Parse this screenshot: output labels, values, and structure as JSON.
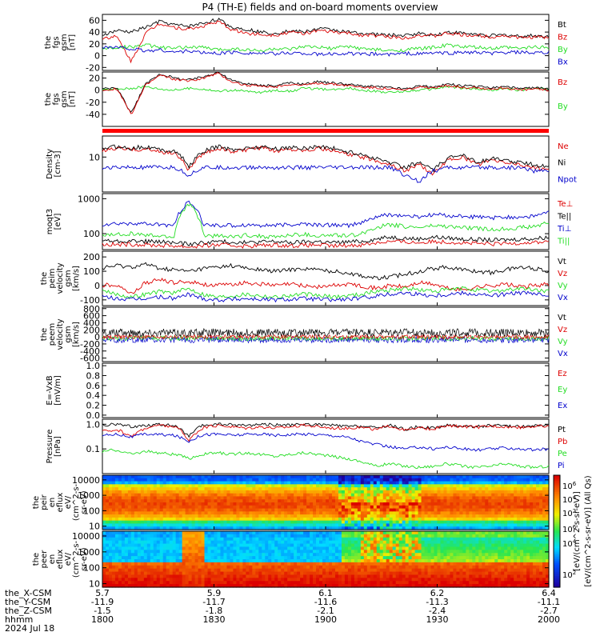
{
  "title": "P4 (TH-E) fields and on-board moments overview",
  "colors": {
    "black": "#000000",
    "red": "#dd0000",
    "green": "#22dd22",
    "blue": "#0000cc"
  },
  "x_axis": {
    "rows": [
      {
        "label": "the_X-CSM",
        "values": [
          "5.7",
          "5.9",
          "6.1",
          "6.2",
          "6.4"
        ]
      },
      {
        "label": "the_Y-CSM",
        "values": [
          "-11.9",
          "-11.7",
          "-11.6",
          "-11.3",
          "-11.1"
        ]
      },
      {
        "label": "the_Z-CSM",
        "values": [
          "-1.5",
          "-1.8",
          "-2.1",
          "-2.4",
          "-2.7"
        ]
      },
      {
        "label": "hhmm",
        "values": [
          "1800",
          "1830",
          "1900",
          "1930",
          "2000"
        ]
      }
    ],
    "date": "2024 Jul 18"
  },
  "panels": [
    {
      "id": "fgs_gsm_full",
      "ylabel": [
        "the",
        "fgs",
        "gsm",
        "[nT]"
      ],
      "ticks": [
        "60",
        "40",
        "20",
        "0",
        "-20"
      ],
      "legend": [
        "Bt",
        "Bz",
        "By",
        "Bx"
      ],
      "legend_colors": [
        "black",
        "red",
        "green",
        "blue"
      ]
    },
    {
      "id": "fgs_gsm_z",
      "ylabel": [
        "the",
        "fgs",
        "gsm",
        "[nT]"
      ],
      "ticks": [
        "20",
        "0",
        "-20",
        "-40"
      ],
      "legend": [
        "Bz",
        "By"
      ],
      "legend_colors": [
        "red",
        "green"
      ]
    },
    {
      "id": "state_bar",
      "ylabel": [],
      "ticks": [],
      "legend": [],
      "legend_colors": []
    },
    {
      "id": "density",
      "ylabel": [
        "Density",
        "[cm-3]"
      ],
      "ticks": [
        "10"
      ],
      "legend": [
        "Ne",
        "Ni",
        "Npot"
      ],
      "legend_colors": [
        "red",
        "black",
        "blue"
      ]
    },
    {
      "id": "temperature",
      "ylabel": [
        "moqt3",
        "[eV]"
      ],
      "ticks": [
        "1000",
        "100"
      ],
      "legend": [
        "Te⊥",
        "Te||",
        "Ti⊥",
        "Ti||"
      ],
      "legend_colors": [
        "red",
        "black",
        "blue",
        "green"
      ]
    },
    {
      "id": "peim_velocity",
      "ylabel": [
        "the",
        "peim",
        "velocity",
        "gsm",
        "[km/s]"
      ],
      "ticks": [
        "200",
        "100",
        "0",
        "-100"
      ],
      "legend": [
        "Vt",
        "Vz",
        "Vy",
        "Vx"
      ],
      "legend_colors": [
        "black",
        "red",
        "green",
        "blue"
      ]
    },
    {
      "id": "peem_velocity",
      "ylabel": [
        "the",
        "peem",
        "velocity",
        "gsm",
        "[km/s]"
      ],
      "ticks": [
        "800",
        "600",
        "400",
        "200",
        "0",
        "-200",
        "-400",
        "-600"
      ],
      "legend": [
        "Vt",
        "Vz",
        "Vy",
        "Vx"
      ],
      "legend_colors": [
        "black",
        "red",
        "green",
        "blue"
      ]
    },
    {
      "id": "exb",
      "ylabel": [
        "E=-VxB",
        "[mV/m]"
      ],
      "ticks": [
        "1.0",
        "0.8",
        "0.6",
        "0.4",
        "0.2",
        "0.0"
      ],
      "legend": [
        "Ez",
        "Ey",
        "Ex"
      ],
      "legend_colors": [
        "red",
        "green",
        "blue"
      ]
    },
    {
      "id": "pressure",
      "ylabel": [
        "Pressure",
        "[nPa]"
      ],
      "ticks": [
        "1.0",
        "0.1"
      ],
      "legend": [
        "Pt",
        "Pb",
        "Pe",
        "Pi"
      ],
      "legend_colors": [
        "black",
        "red",
        "green",
        "blue"
      ]
    },
    {
      "id": "peir",
      "ylabel": [
        "the",
        "peir",
        "en",
        "eflux",
        "eV/",
        "(cm^2-s-",
        "sr-eV)"
      ],
      "ticks": [
        "10000",
        "1000",
        "100",
        "10"
      ],
      "legend": [],
      "legend_colors": []
    },
    {
      "id": "peer",
      "ylabel": [
        "the",
        "peer",
        "en",
        "eflux",
        "eV/",
        "(cm^2-s-",
        "sr-eV)"
      ],
      "ticks": [
        "10000",
        "1000",
        "100",
        "10"
      ],
      "legend": [],
      "legend_colors": []
    }
  ],
  "colorbar": {
    "label": "[eV/(cm^2-s-sr-eV)] (All Qs)",
    "overlap_label": "[eV/(cm^2-s-sr-eV)]",
    "ticks_top": [
      "10^6",
      "10^4",
      "10^2"
    ],
    "ticks_bottom": [
      "10^6",
      "10^4",
      "10^2"
    ]
  },
  "chart_data": {
    "type": "line",
    "title": "P4 (TH-E) fields and on-board moments overview",
    "x": {
      "label": "hhmm",
      "ticks": [
        "1800",
        "1830",
        "1900",
        "1930",
        "2000"
      ],
      "range": [
        "1800",
        "2000"
      ]
    },
    "series": [
      {
        "name": "Bt",
        "panel": "fgs_gsm_full",
        "color": "black",
        "values": [
          35,
          42,
          40,
          48,
          58,
          52,
          50,
          55,
          62,
          48,
          45,
          40,
          38,
          42,
          40,
          46,
          44,
          40,
          38,
          36,
          35,
          34,
          38,
          35,
          40,
          38,
          36,
          34,
          35,
          33,
          34,
          32
        ]
      },
      {
        "name": "Bz",
        "panel": "fgs_gsm_full",
        "color": "red",
        "values": [
          30,
          32,
          -10,
          38,
          55,
          48,
          45,
          50,
          58,
          44,
          38,
          36,
          35,
          40,
          38,
          42,
          40,
          38,
          35,
          34,
          32,
          30,
          35,
          33,
          38,
          35,
          34,
          32,
          34,
          30,
          32,
          30
        ]
      },
      {
        "name": "By",
        "panel": "fgs_gsm_full",
        "color": "green",
        "values": [
          12,
          14,
          15,
          18,
          14,
          12,
          15,
          14,
          10,
          12,
          10,
          8,
          12,
          10,
          15,
          14,
          12,
          16,
          12,
          10,
          8,
          10,
          12,
          14,
          18,
          15,
          14,
          12,
          14,
          12,
          15,
          14
        ]
      },
      {
        "name": "Bx",
        "panel": "fgs_gsm_full",
        "color": "blue",
        "values": [
          15,
          14,
          12,
          8,
          10,
          6,
          8,
          5,
          4,
          6,
          5,
          4,
          3,
          5,
          4,
          2,
          3,
          4,
          2,
          3,
          2,
          4,
          3,
          5,
          4,
          6,
          5,
          4,
          5,
          6,
          4,
          5
        ]
      },
      {
        "name": "Ne",
        "panel": "density",
        "color": "red",
        "values": [
          15,
          18,
          16,
          17,
          14,
          13,
          4,
          12,
          18,
          14,
          16,
          18,
          15,
          17,
          16,
          18,
          15,
          12,
          10,
          8,
          6,
          4,
          6,
          3,
          8,
          10,
          6,
          8,
          7,
          6,
          5,
          4
        ]
      },
      {
        "name": "Ni",
        "panel": "density",
        "color": "black",
        "values": [
          18,
          20,
          18,
          20,
          16,
          15,
          5,
          14,
          20,
          16,
          18,
          20,
          17,
          19,
          18,
          20,
          18,
          14,
          12,
          9,
          7,
          5,
          7,
          4,
          9,
          12,
          7,
          9,
          8,
          7,
          6,
          5
        ]
      },
      {
        "name": "Npot",
        "panel": "density",
        "color": "blue",
        "values": [
          5,
          5,
          5,
          5,
          5,
          5,
          3,
          5,
          5,
          5,
          5,
          5,
          5,
          5,
          5,
          5,
          5,
          5,
          5,
          5,
          5,
          3,
          2,
          4,
          5,
          5,
          5,
          5,
          5,
          5,
          4,
          4
        ]
      },
      {
        "name": "Ti⊥",
        "panel": "temperature",
        "color": "blue",
        "values": [
          180,
          190,
          200,
          185,
          180,
          170,
          800,
          180,
          175,
          170,
          180,
          175,
          170,
          180,
          190,
          175,
          180,
          170,
          200,
          300,
          350,
          320,
          300,
          350,
          330,
          310,
          300,
          280,
          290,
          300,
          320,
          400
        ]
      },
      {
        "name": "Ti||",
        "panel": "temperature",
        "color": "green",
        "values": [
          90,
          95,
          100,
          90,
          85,
          80,
          700,
          90,
          85,
          80,
          90,
          85,
          80,
          90,
          95,
          85,
          90,
          85,
          100,
          150,
          180,
          160,
          150,
          170,
          160,
          150,
          140,
          130,
          140,
          150,
          160,
          200
        ]
      },
      {
        "name": "Te||",
        "panel": "temperature",
        "color": "black",
        "values": [
          65,
          60,
          62,
          60,
          58,
          55,
          50,
          55,
          60,
          58,
          55,
          58,
          60,
          55,
          58,
          60,
          55,
          58,
          60,
          70,
          80,
          75,
          70,
          80,
          75,
          70,
          68,
          65,
          66,
          70,
          72,
          80
        ]
      },
      {
        "name": "Te⊥",
        "panel": "temperature",
        "color": "red",
        "values": [
          50,
          48,
          50,
          48,
          46,
          45,
          42,
          45,
          48,
          46,
          44,
          46,
          48,
          45,
          46,
          48,
          44,
          46,
          48,
          55,
          60,
          58,
          55,
          60,
          58,
          55,
          52,
          50,
          52,
          55,
          56,
          60
        ]
      },
      {
        "name": "Vt (peim)",
        "panel": "peim_velocity",
        "color": "black",
        "values": [
          120,
          140,
          130,
          150,
          120,
          110,
          100,
          120,
          130,
          140,
          120,
          110,
          100,
          110,
          120,
          110,
          100,
          90,
          70,
          50,
          60,
          80,
          100,
          120,
          130,
          110,
          100,
          90,
          110,
          130,
          120,
          100
        ]
      },
      {
        "name": "Vz (peim)",
        "panel": "peim_velocity",
        "color": "red",
        "values": [
          0,
          10,
          -60,
          20,
          40,
          20,
          30,
          10,
          0,
          10,
          20,
          10,
          0,
          10,
          0,
          -10,
          0,
          10,
          0,
          -20,
          0,
          -10,
          20,
          10,
          -20,
          -30,
          -10,
          0,
          10,
          -10,
          0,
          10
        ]
      },
      {
        "name": "Vy (peim)",
        "panel": "peim_velocity",
        "color": "green",
        "values": [
          -40,
          -60,
          -80,
          -60,
          -40,
          -50,
          -20,
          -60,
          -80,
          -70,
          -60,
          -70,
          -80,
          -70,
          -60,
          -70,
          -80,
          -70,
          -60,
          -40,
          -30,
          -20,
          -30,
          -40,
          -30,
          -20,
          -30,
          -40,
          -30,
          -20,
          -30,
          -40
        ]
      },
      {
        "name": "Vx (peim)",
        "panel": "peim_velocity",
        "color": "blue",
        "values": [
          -80,
          -90,
          -100,
          -90,
          -80,
          -90,
          -60,
          -90,
          -100,
          -95,
          -90,
          -95,
          -100,
          -95,
          -90,
          -95,
          -100,
          -95,
          -90,
          -70,
          -60,
          -50,
          -60,
          -70,
          -60,
          -50,
          -60,
          -70,
          -60,
          -50,
          -60,
          -70
        ]
      },
      {
        "name": "Pt",
        "panel": "pressure",
        "color": "black",
        "values": [
          0.9,
          1.0,
          0.8,
          0.9,
          1.0,
          0.85,
          0.3,
          0.9,
          1.0,
          0.95,
          0.9,
          1.0,
          0.95,
          0.9,
          1.0,
          0.95,
          0.9,
          0.8,
          0.85,
          0.7,
          0.9,
          0.6,
          0.8,
          0.7,
          0.9,
          0.85,
          0.8,
          0.9,
          0.85,
          0.8,
          0.9,
          0.85
        ]
      },
      {
        "name": "Pb",
        "panel": "pressure",
        "color": "red",
        "values": [
          0.5,
          0.6,
          0.3,
          0.7,
          0.9,
          0.8,
          0.2,
          0.7,
          0.9,
          0.8,
          0.7,
          0.8,
          0.7,
          0.8,
          0.9,
          0.8,
          0.7,
          0.7,
          0.75,
          0.6,
          0.85,
          0.55,
          0.7,
          0.65,
          0.85,
          0.8,
          0.75,
          0.85,
          0.8,
          0.75,
          0.85,
          0.8
        ]
      },
      {
        "name": "Pe",
        "panel": "pressure",
        "color": "green",
        "values": [
          0.08,
          0.09,
          0.06,
          0.08,
          0.07,
          0.06,
          0.04,
          0.06,
          0.07,
          0.06,
          0.07,
          0.06,
          0.05,
          0.06,
          0.07,
          0.06,
          0.05,
          0.04,
          0.03,
          0.02,
          0.025,
          0.02,
          0.018,
          0.02,
          0.025,
          0.02,
          0.018,
          0.02,
          0.025,
          0.02,
          0.018,
          0.02
        ]
      },
      {
        "name": "Pi",
        "panel": "pressure",
        "color": "blue",
        "values": [
          0.35,
          0.4,
          0.3,
          0.4,
          0.38,
          0.35,
          0.2,
          0.38,
          0.4,
          0.36,
          0.38,
          0.4,
          0.36,
          0.38,
          0.4,
          0.38,
          0.35,
          0.3,
          0.2,
          0.15,
          0.12,
          0.1,
          0.12,
          0.1,
          0.12,
          0.1,
          0.09,
          0.1,
          0.11,
          0.1,
          0.09,
          0.1
        ]
      }
    ]
  }
}
